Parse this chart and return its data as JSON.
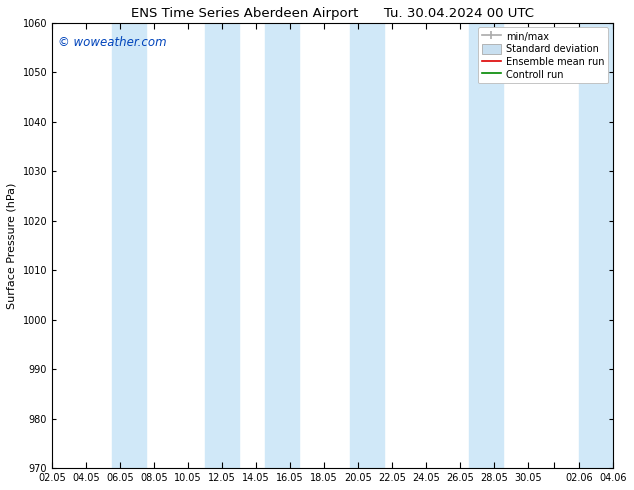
{
  "title_left": "ENS Time Series Aberdeen Airport",
  "title_right": "Tu. 30.04.2024 00 UTC",
  "ylabel": "Surface Pressure (hPa)",
  "ylim": [
    970,
    1060
  ],
  "yticks": [
    970,
    980,
    990,
    1000,
    1010,
    1020,
    1030,
    1040,
    1050,
    1060
  ],
  "xtick_labels": [
    "02.05",
    "04.05",
    "06.05",
    "08.05",
    "10.05",
    "12.05",
    "14.05",
    "16.05",
    "18.05",
    "20.05",
    "22.05",
    "24.05",
    "26.05",
    "28.05",
    "30.05",
    "",
    "02.06",
    "04.06"
  ],
  "watermark": "© woweather.com",
  "watermark_color": "#0044bb",
  "bg_color": "#ffffff",
  "plot_bg_color": "#ffffff",
  "band_color": "#d0e8f8",
  "legend_labels": [
    "min/max",
    "Standard deviation",
    "Ensemble mean run",
    "Controll run"
  ],
  "title_fontsize": 9.5,
  "ylabel_fontsize": 8,
  "tick_fontsize": 7,
  "watermark_fontsize": 8.5,
  "legend_fontsize": 7
}
